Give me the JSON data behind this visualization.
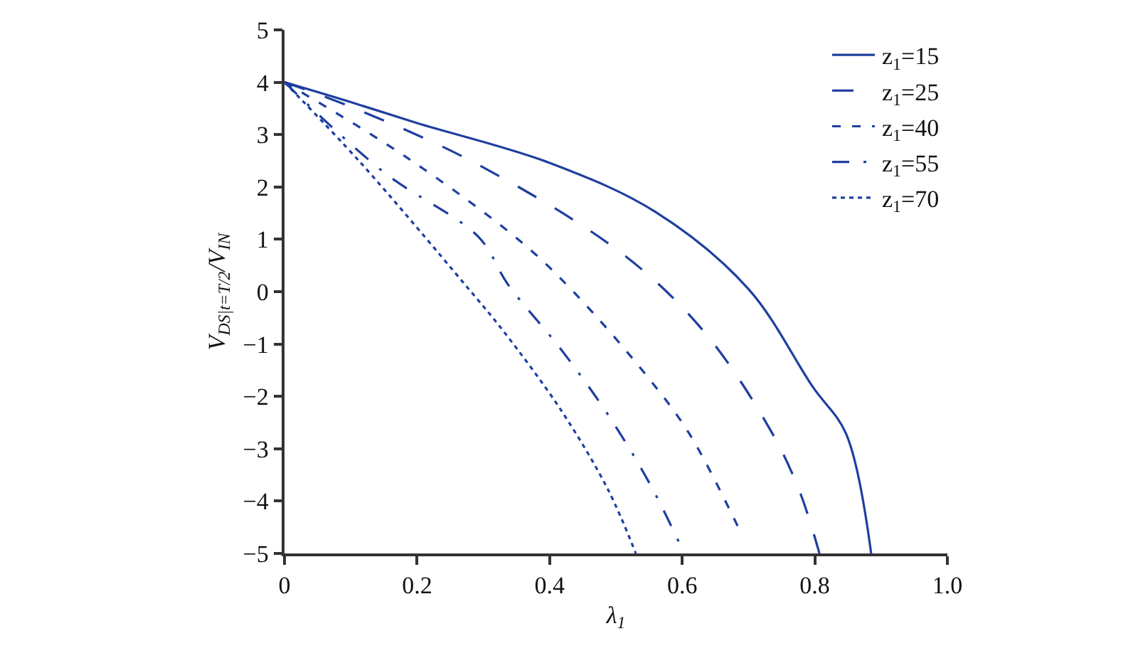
{
  "chart_data": {
    "type": "line",
    "xlabel": "λ$_{1}$",
    "ylabel": "V$_{DS|t=T/2}$/V$_{IN}$",
    "xlim": [
      0,
      1.0
    ],
    "xticks": [
      0,
      0.2,
      0.4,
      0.6,
      0.8,
      {
        "value": 1.0,
        "label": "1.0"
      }
    ],
    "ylim": [
      -5,
      5
    ],
    "yticks": [
      -5,
      -4,
      -3,
      -2,
      -1,
      0,
      1,
      2,
      3,
      4,
      5
    ],
    "legend": "top right",
    "marker": "none",
    "series": [
      {
        "name": "z$_{1}$=15",
        "color": "#1f3fa0",
        "line_style": "solid",
        "x": [
          0,
          0.1,
          0.2,
          0.4,
          0.56,
          0.7,
          0.797,
          0.847,
          0.885
        ],
        "values": [
          4,
          3.62,
          3.22,
          2.46,
          1.52,
          0.05,
          -1.82,
          -2.71,
          -5
        ]
      },
      {
        "name": "z$_{1}$=25",
        "color": "#1f3fa0",
        "line_style": "longdash",
        "x": [
          0,
          0.1,
          0.287,
          0.51,
          0.632,
          0.732,
          0.776,
          0.807
        ],
        "values": [
          4,
          3.53,
          2.46,
          0.72,
          -0.75,
          -2.62,
          -3.78,
          -5
        ]
      },
      {
        "name": "z$_{1}$=40",
        "color": "#1f3fa0",
        "line_style": "dash",
        "x": [
          0,
          0.186,
          0.358,
          0.438,
          0.546,
          0.61,
          0.686
        ],
        "values": [
          4,
          2.55,
          0.94,
          -0.03,
          -1.6,
          -2.7,
          -4.54
        ]
      },
      {
        "name": "z$_{1}$=55",
        "color": "#1f3fa0",
        "line_style": "dashdot",
        "x": [
          0,
          0.15,
          0.293,
          0.337,
          0.417,
          0.488,
          0.552,
          0.603
        ],
        "values": [
          4,
          2.28,
          1.04,
          0.14,
          -1.1,
          -2.35,
          -3.69,
          -5
        ]
      },
      {
        "name": "z$_{1}$=70",
        "color": "#1f3fa0",
        "line_style": "dotted",
        "x": [
          0,
          0.115,
          0.272,
          0.33,
          0.417,
          0.488,
          0.53
        ],
        "values": [
          4,
          2.46,
          0.14,
          -0.75,
          -2.26,
          -3.78,
          -5
        ]
      }
    ]
  }
}
